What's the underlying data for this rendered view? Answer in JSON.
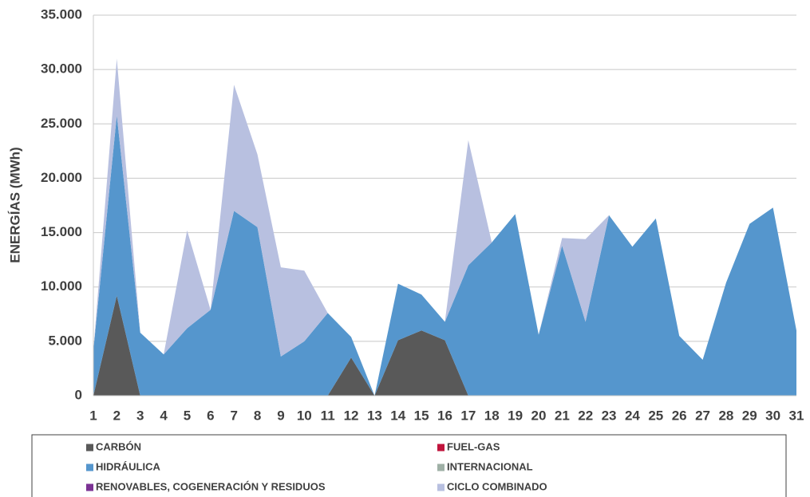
{
  "chart_data": {
    "type": "stacked_area",
    "y_label": "ENERGÍAS (MWh)",
    "categories": [
      "1",
      "2",
      "3",
      "4",
      "5",
      "6",
      "7",
      "8",
      "9",
      "10",
      "11",
      "12",
      "13",
      "14",
      "15",
      "16",
      "17",
      "18",
      "19",
      "20",
      "21",
      "22",
      "23",
      "24",
      "25",
      "26",
      "27",
      "28",
      "29",
      "30",
      "31"
    ],
    "series": [
      {
        "name": "CARBÓN",
        "color": "#595959",
        "values": [
          0,
          9200,
          0,
          0,
          0,
          0,
          0,
          0,
          0,
          0,
          0,
          3500,
          0,
          5100,
          6000,
          5100,
          0,
          0,
          0,
          0,
          0,
          0,
          0,
          0,
          0,
          0,
          0,
          0,
          0,
          0,
          0
        ]
      },
      {
        "name": "FUEL-GAS",
        "color": "#c0143c",
        "values": [
          0,
          0,
          0,
          0,
          0,
          0,
          0,
          0,
          0,
          0,
          0,
          0,
          0,
          0,
          0,
          0,
          0,
          0,
          0,
          0,
          0,
          0,
          0,
          0,
          0,
          0,
          0,
          0,
          0,
          0,
          0
        ]
      },
      {
        "name": "HIDRÁULICA",
        "color": "#5596cd",
        "values": [
          4200,
          16600,
          5800,
          3800,
          6200,
          7900,
          17000,
          15500,
          3600,
          5000,
          7600,
          1900,
          0,
          5200,
          3300,
          1700,
          12000,
          14100,
          16700,
          5600,
          13800,
          6800,
          16600,
          13700,
          16300,
          5500,
          3300,
          10400,
          15800,
          17300,
          6000
        ]
      },
      {
        "name": "INTERNACIONAL",
        "color": "#9fb0a6",
        "values": [
          0,
          0,
          0,
          0,
          0,
          0,
          0,
          0,
          0,
          0,
          0,
          0,
          0,
          0,
          0,
          0,
          0,
          0,
          0,
          0,
          0,
          0,
          0,
          0,
          0,
          0,
          0,
          0,
          0,
          0,
          0
        ]
      },
      {
        "name": "RENOVABLES, COGENERACIÓN Y RESIDUOS",
        "color": "#7b3294",
        "values": [
          0,
          0,
          0,
          0,
          0,
          0,
          0,
          0,
          0,
          0,
          0,
          0,
          0,
          0,
          0,
          0,
          0,
          0,
          0,
          0,
          0,
          0,
          0,
          0,
          0,
          0,
          0,
          0,
          0,
          0,
          0
        ]
      },
      {
        "name": "CICLO COMBINADO",
        "color": "#b8c0e0",
        "values": [
          0,
          5200,
          0,
          0,
          9000,
          0,
          11600,
          6700,
          8200,
          6500,
          0,
          0,
          0,
          0,
          0,
          0,
          11500,
          0,
          0,
          0,
          700,
          7600,
          0,
          0,
          0,
          0,
          0,
          0,
          0,
          0,
          0
        ]
      }
    ],
    "ylim": [
      0,
      35000
    ],
    "yticks": [
      0,
      {
        "value": 5000,
        "label": "5.000"
      },
      {
        "value": 10000,
        "label": "10.000"
      },
      {
        "value": 15000,
        "label": "15.000"
      },
      {
        "value": 20000,
        "label": "20.000"
      },
      {
        "value": 25000,
        "label": "25.000"
      },
      {
        "value": 30000,
        "label": "30.000"
      },
      {
        "value": 35000,
        "label": "35.000"
      }
    ],
    "grid": true
  }
}
